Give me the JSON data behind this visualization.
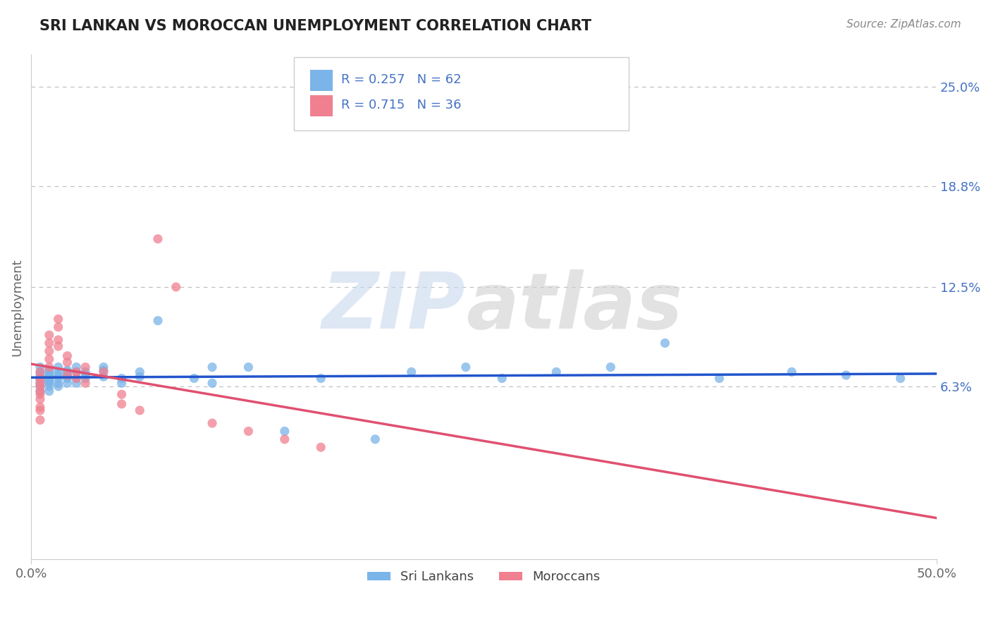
{
  "title": "SRI LANKAN VS MOROCCAN UNEMPLOYMENT CORRELATION CHART",
  "source": "Source: ZipAtlas.com",
  "ylabel": "Unemployment",
  "y_tick_vals": [
    0.063,
    0.125,
    0.188,
    0.25
  ],
  "y_tick_labels": [
    "6.3%",
    "12.5%",
    "18.8%",
    "25.0%"
  ],
  "x_min": 0.0,
  "x_max": 0.5,
  "y_min": -0.045,
  "y_max": 0.27,
  "sri_lankan_color": "#7ab4e8",
  "moroccan_color": "#f08090",
  "sri_lankan_line_color": "#2255cc",
  "moroccan_line_color": "#e05070",
  "sri_lankan_R": 0.257,
  "sri_lankan_N": 62,
  "moroccan_R": 0.715,
  "moroccan_N": 36,
  "background_color": "#ffffff",
  "grid_color": "#bbbbbb",
  "title_color": "#222222",
  "sri_lankans_x": [
    0.005,
    0.005,
    0.005,
    0.005,
    0.005,
    0.005,
    0.005,
    0.005,
    0.01,
    0.01,
    0.01,
    0.01,
    0.01,
    0.01,
    0.01,
    0.01,
    0.01,
    0.01,
    0.015,
    0.015,
    0.015,
    0.015,
    0.015,
    0.015,
    0.02,
    0.02,
    0.02,
    0.02,
    0.02,
    0.02,
    0.025,
    0.025,
    0.025,
    0.025,
    0.03,
    0.03,
    0.03,
    0.04,
    0.04,
    0.04,
    0.05,
    0.05,
    0.06,
    0.06,
    0.07,
    0.09,
    0.1,
    0.1,
    0.12,
    0.14,
    0.16,
    0.19,
    0.21,
    0.24,
    0.26,
    0.29,
    0.32,
    0.35,
    0.38,
    0.42,
    0.45,
    0.48
  ],
  "sri_lankans_y": [
    0.065,
    0.068,
    0.07,
    0.072,
    0.063,
    0.067,
    0.06,
    0.075,
    0.069,
    0.066,
    0.072,
    0.065,
    0.07,
    0.063,
    0.068,
    0.073,
    0.06,
    0.067,
    0.068,
    0.072,
    0.065,
    0.07,
    0.075,
    0.063,
    0.07,
    0.068,
    0.073,
    0.065,
    0.072,
    0.069,
    0.072,
    0.068,
    0.065,
    0.075,
    0.07,
    0.068,
    0.072,
    0.073,
    0.069,
    0.075,
    0.068,
    0.065,
    0.072,
    0.069,
    0.104,
    0.068,
    0.075,
    0.065,
    0.075,
    0.035,
    0.068,
    0.03,
    0.072,
    0.075,
    0.068,
    0.072,
    0.075,
    0.09,
    0.068,
    0.072,
    0.07,
    0.068
  ],
  "moroccans_x": [
    0.005,
    0.005,
    0.005,
    0.005,
    0.005,
    0.005,
    0.005,
    0.005,
    0.005,
    0.005,
    0.01,
    0.01,
    0.01,
    0.01,
    0.01,
    0.015,
    0.015,
    0.015,
    0.015,
    0.02,
    0.02,
    0.02,
    0.025,
    0.025,
    0.03,
    0.03,
    0.04,
    0.05,
    0.05,
    0.06,
    0.07,
    0.08,
    0.1,
    0.12,
    0.14,
    0.16
  ],
  "moroccans_y": [
    0.068,
    0.072,
    0.06,
    0.055,
    0.048,
    0.065,
    0.05,
    0.058,
    0.063,
    0.042,
    0.08,
    0.075,
    0.09,
    0.095,
    0.085,
    0.1,
    0.105,
    0.092,
    0.088,
    0.078,
    0.082,
    0.07,
    0.068,
    0.072,
    0.065,
    0.075,
    0.072,
    0.052,
    0.058,
    0.048,
    0.155,
    0.125,
    0.04,
    0.035,
    0.03,
    0.025
  ]
}
